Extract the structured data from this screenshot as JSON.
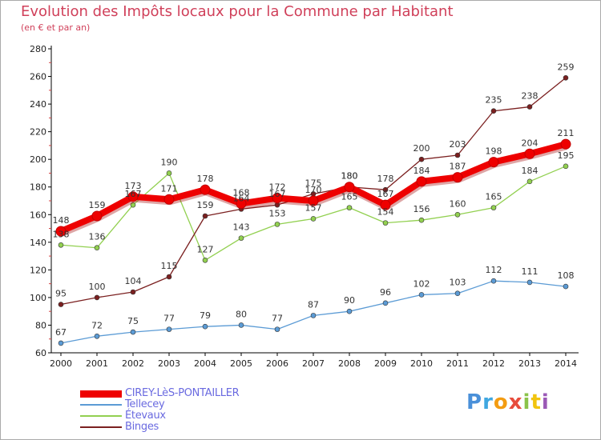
{
  "title": "Evolution des Impôts locaux pour la Commune par Habitant",
  "subtitle": "(en € et par an)",
  "logo": {
    "text": "Proxiti",
    "letter_colors": [
      "#4a90d9",
      "#3fa7e0",
      "#f39c12",
      "#e74c3c",
      "#8bc34a",
      "#f1c40f",
      "#9b59b6"
    ]
  },
  "chart_data": {
    "type": "line",
    "title": "Evolution des Impôts locaux pour la Commune par Habitant",
    "subtitle": "(en € et par an)",
    "x": [
      "2000",
      "2001",
      "2002",
      "2003",
      "2004",
      "2005",
      "2006",
      "2007",
      "2008",
      "2009",
      "2010",
      "2011",
      "2012",
      "2013",
      "2014"
    ],
    "ylim": [
      60,
      280
    ],
    "yticks": [
      60,
      80,
      100,
      120,
      140,
      160,
      180,
      200,
      220,
      240,
      260,
      280
    ],
    "grid": false,
    "legend_position": "bottom-left",
    "series": [
      {
        "name": "CIREY-LèS-PONTAILLER",
        "color": "#ee0000",
        "values": [
          148,
          159,
          173,
          171,
          178,
          168,
          172,
          170,
          180,
          167,
          184,
          187,
          198,
          204,
          211
        ]
      },
      {
        "name": "Tellecey",
        "color": "#5b9bd5",
        "values": [
          67,
          72,
          75,
          77,
          79,
          80,
          77,
          87,
          90,
          96,
          102,
          103,
          112,
          111,
          108
        ]
      },
      {
        "name": "Étevaux",
        "color": "#92d050",
        "values": [
          138,
          136,
          167,
          190,
          127,
          143,
          153,
          157,
          165,
          154,
          156,
          160,
          165,
          184,
          195
        ]
      },
      {
        "name": "Binges",
        "color": "#7b2020",
        "values": [
          95,
          100,
          104,
          115,
          159,
          164,
          167,
          175,
          180,
          178,
          200,
          203,
          235,
          238,
          259
        ]
      }
    ]
  }
}
